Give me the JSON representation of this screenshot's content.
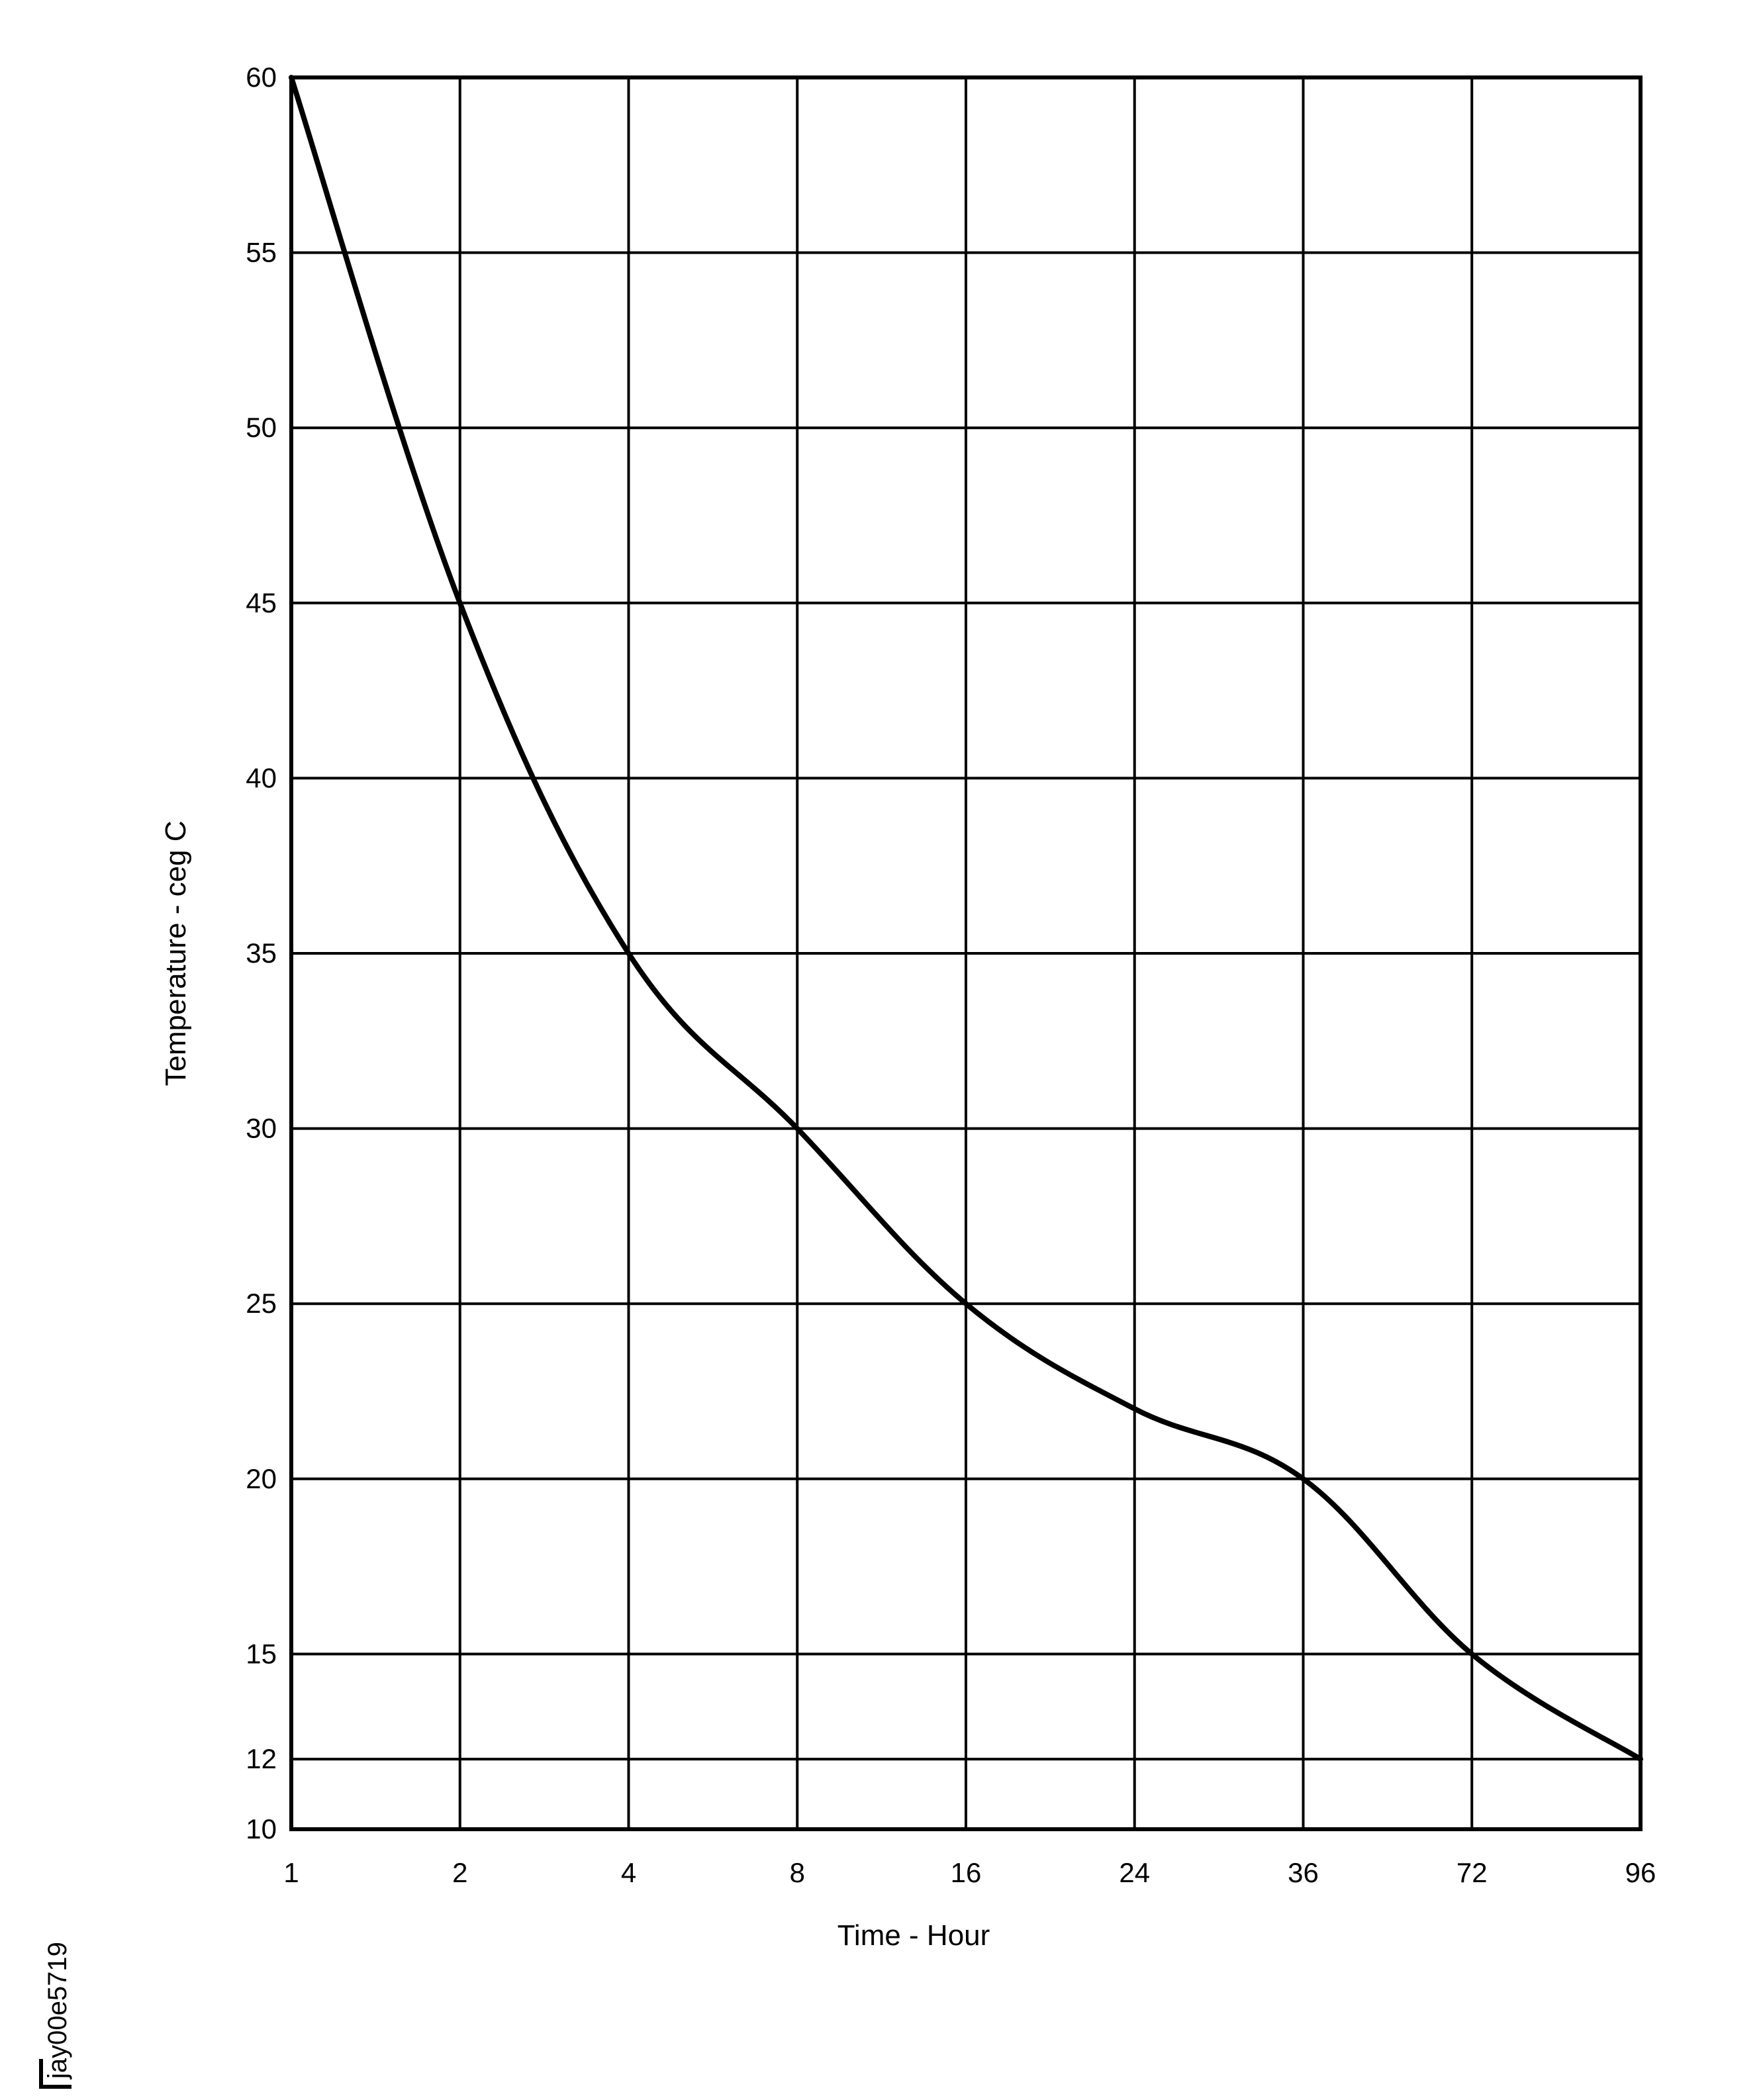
{
  "chart_data": {
    "type": "line",
    "title": "",
    "xlabel": "Time - Hour",
    "ylabel": "Temperature - ceg C",
    "x_scale": "categorical (equally spaced)",
    "categories": [
      "1",
      "2",
      "4",
      "8",
      "16",
      "24",
      "36",
      "72",
      "96"
    ],
    "x": [
      1,
      2,
      4,
      8,
      16,
      24,
      36,
      72,
      96
    ],
    "series": [
      {
        "name": "Temperature",
        "values": [
          60,
          45,
          35,
          30,
          25,
          22,
          20,
          15,
          12
        ]
      }
    ],
    "y_ticks": [
      10,
      12,
      15,
      20,
      25,
      30,
      35,
      40,
      45,
      50,
      55,
      60
    ],
    "ylim": [
      10,
      60
    ],
    "grid": true,
    "legend": null,
    "annotations": [
      "jay00e5719"
    ]
  },
  "labels": {
    "x_axis_title": "Time - Hour",
    "y_axis_title": "Temperature - ceg C",
    "figure_id": "jay00e5719"
  }
}
